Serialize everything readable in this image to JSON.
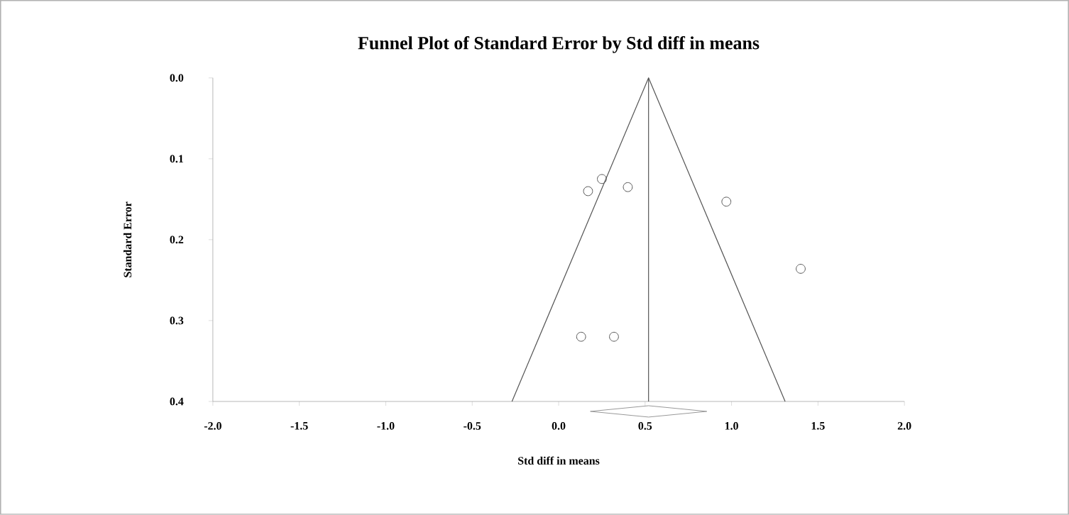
{
  "chart_data": {
    "type": "scatter",
    "title": "Funnel Plot of Standard Error by Std diff in means",
    "xlabel": "Std diff in means",
    "ylabel": "Standard Error",
    "x": [
      0.17,
      0.25,
      0.4,
      0.97,
      1.4,
      0.13,
      0.32
    ],
    "series": [
      {
        "color": "#555555",
        "marker": "circle",
        "values": [
          0.14,
          0.125,
          0.135,
          0.153,
          0.236,
          0.32,
          0.32
        ]
      },
      {
        "type": "line",
        "color": "#555555",
        "x": [
          -0.27,
          0.52,
          1.31
        ],
        "values": [
          0.4,
          0.0,
          0.4
        ]
      }
    ],
    "ref_lines": [
      {
        "axis": "x",
        "value": 0.52,
        "color": "#555555"
      }
    ],
    "xlim": [
      -2.0,
      2.0
    ],
    "ylim": [
      0.4,
      0.0
    ],
    "xticks": [
      {
        "value": -2.0,
        "label": "-2.0"
      },
      {
        "value": -1.5,
        "label": "-1.5"
      },
      {
        "value": -1.0,
        "label": "-1.0"
      },
      {
        "value": -0.5,
        "label": "-0.5"
      },
      {
        "value": 0.0,
        "label": "0.0"
      },
      {
        "value": 0.5,
        "label": "0.5"
      },
      {
        "value": 1.0,
        "label": "1.0"
      },
      {
        "value": 1.5,
        "label": "1.5"
      },
      {
        "value": 2.0,
        "label": "2.0"
      }
    ],
    "yticks": [
      {
        "value": 0.0,
        "label": "0.0"
      },
      {
        "value": 0.1,
        "label": "0.1"
      },
      {
        "value": 0.2,
        "label": "0.2"
      },
      {
        "value": 0.3,
        "label": "0.3"
      },
      {
        "value": 0.4,
        "label": "0.4"
      }
    ]
  }
}
